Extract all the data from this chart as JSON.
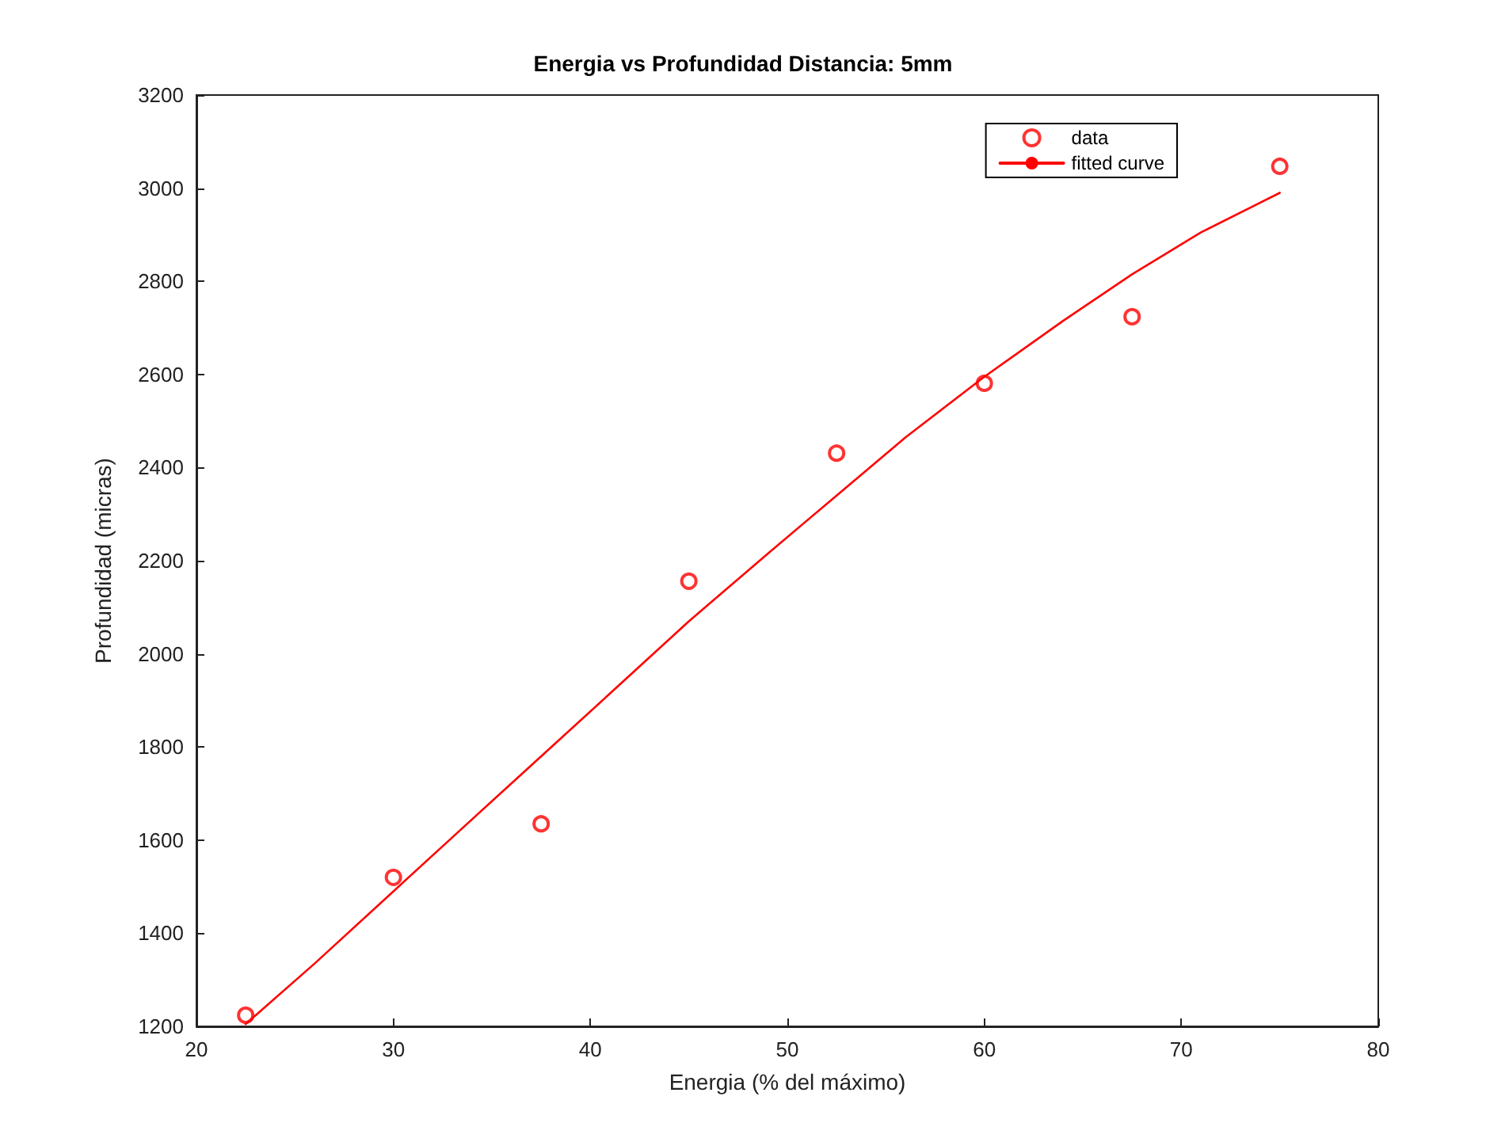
{
  "chart_data": {
    "type": "scatter",
    "title": "Energia vs Profundidad Distancia: 5mm",
    "xlabel": "Energia (% del máximo)",
    "ylabel": "Profundidad (micras)",
    "xlim": [
      20,
      80
    ],
    "xticks": [
      20,
      30,
      40,
      50,
      60,
      70,
      80
    ],
    "ylim": [
      1200,
      3200
    ],
    "yticks": [
      1200,
      1400,
      1600,
      1800,
      2000,
      2200,
      2400,
      2600,
      2800,
      3000,
      3200
    ],
    "grid": false,
    "legend": "top right",
    "series": [
      {
        "name": "data",
        "type": "scatter",
        "marker": "circle",
        "color": "#ff0000",
        "x": [
          22.5,
          30,
          37.5,
          45,
          52.5,
          60,
          67.5,
          75
        ],
        "values": [
          1224,
          1520,
          1635,
          2156,
          2431,
          2581,
          2724,
          3047
        ]
      },
      {
        "name": "fitted curve",
        "type": "line",
        "marker": "none",
        "line_style": "solid",
        "color": "#ff0000",
        "x": [
          22.5,
          26,
          30,
          34,
          37.5,
          41,
          45,
          49,
          52.5,
          56,
          60,
          64,
          67.5,
          71,
          75
        ],
        "values": [
          1205,
          1335,
          1490,
          1645,
          1780,
          1915,
          2070,
          2215,
          2340,
          2465,
          2595,
          2715,
          2815,
          2905,
          2990
        ]
      }
    ]
  }
}
